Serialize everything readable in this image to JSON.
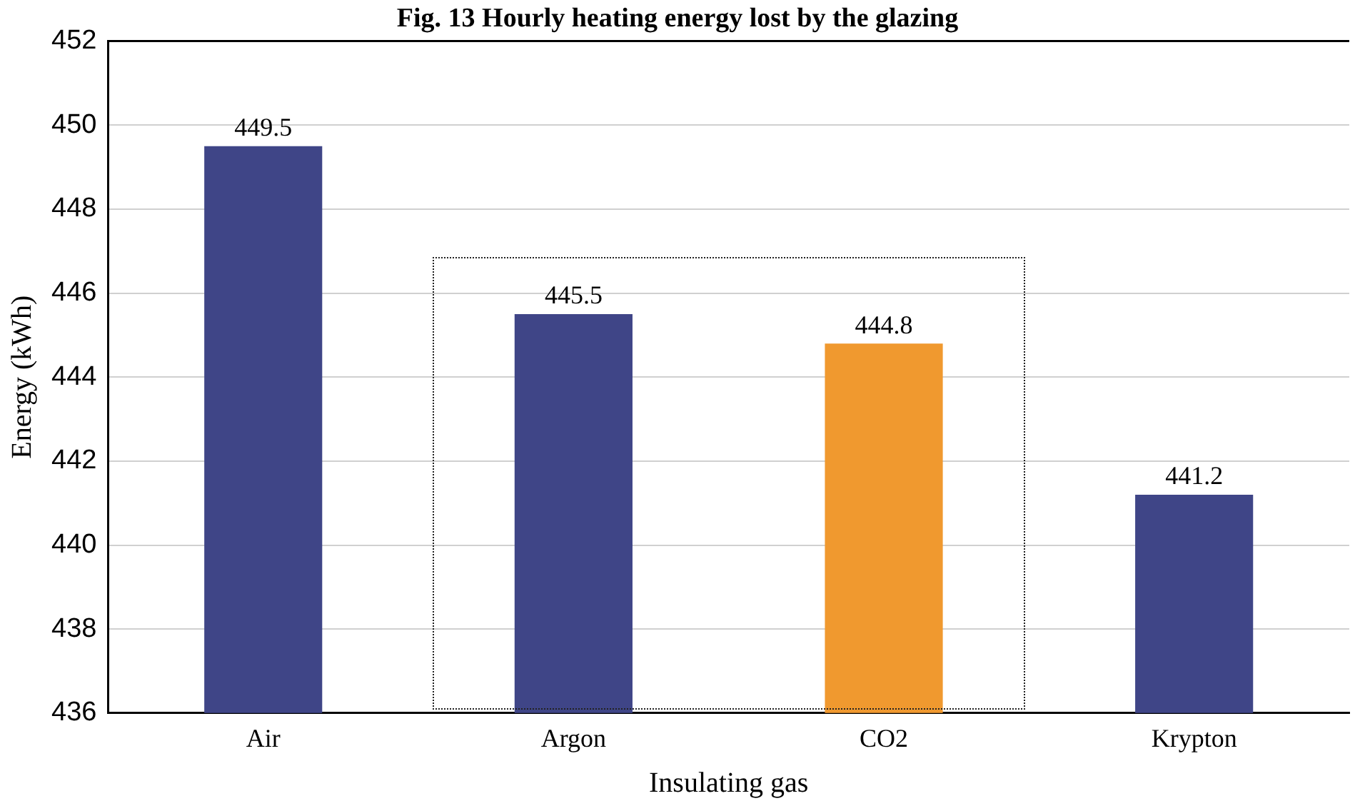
{
  "chart_data": {
    "type": "bar",
    "title": "Fig. 13 Hourly heating energy lost by the glazing",
    "xlabel": "Insulating gas",
    "ylabel": "Energy (kWh)",
    "categories": [
      "Air",
      "Argon",
      "CO2",
      "Krypton"
    ],
    "values": [
      449.5,
      445.5,
      444.8,
      441.2
    ],
    "colors": [
      "#3f4587",
      "#3f4587",
      "#f0992f",
      "#3f4587"
    ],
    "ylim": [
      436,
      452
    ],
    "yticks": [
      436,
      438,
      440,
      442,
      444,
      446,
      448,
      450,
      452
    ],
    "grid": "y",
    "data_labels": true
  }
}
